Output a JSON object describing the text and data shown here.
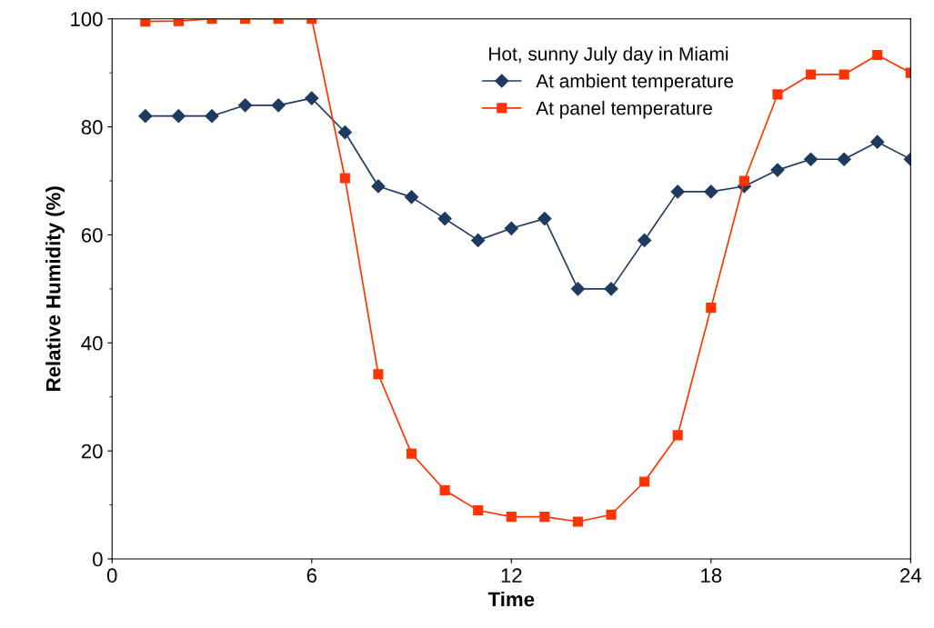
{
  "chart_data": {
    "type": "line",
    "xlabel": "Time",
    "ylabel": "Relative Humidity (%)",
    "legend_title": "Hot, sunny July day in Miami",
    "legend": "top right",
    "grid": false,
    "x": [
      1,
      2,
      3,
      4,
      5,
      6,
      7,
      8,
      9,
      10,
      11,
      12,
      13,
      14,
      15,
      16,
      17,
      18,
      19,
      20,
      21,
      22,
      23,
      24
    ],
    "series": [
      {
        "name": "At ambient temperature",
        "color": "#1f3a60",
        "marker": "diamond",
        "values": [
          82,
          82,
          82,
          84,
          84,
          85.3,
          79,
          69,
          67,
          63,
          59,
          61.2,
          63,
          50,
          50,
          59,
          68,
          68,
          69,
          72,
          74,
          74,
          77.2,
          74
        ]
      },
      {
        "name": "At panel temperature",
        "color": "#ff3300",
        "marker": "square",
        "values": [
          99.5,
          99.6,
          100,
          100,
          100,
          100,
          70.5,
          34.2,
          19.5,
          12.7,
          9,
          7.8,
          7.8,
          6.9,
          8.2,
          14.3,
          22.9,
          46.5,
          70,
          86,
          89.7,
          89.7,
          93.3,
          90
        ]
      }
    ],
    "xlim": [
      0,
      24
    ],
    "xticks": [
      0,
      6,
      12,
      18,
      24
    ],
    "ylim": [
      0,
      100
    ],
    "yticks": [
      0,
      20,
      40,
      60,
      80,
      100
    ]
  }
}
